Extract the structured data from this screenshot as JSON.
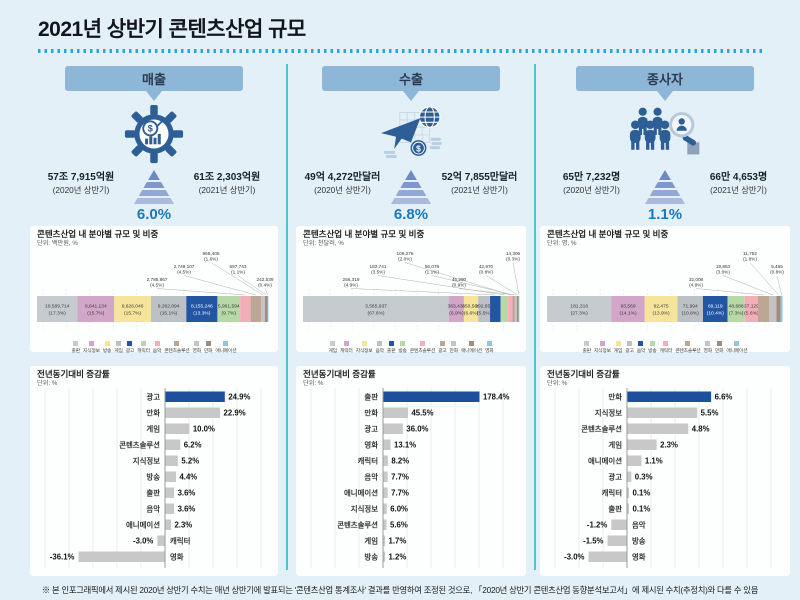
{
  "title": "2021년 상반기 콘텐츠산업 규모",
  "footnote": "※ 본 인포그래픽에서 제시된 2020년 상반기 수치는 매년 상반기에 발표되는 '콘텐츠산업 통계조사' 결과를 반영하여 조정된 것으로, 「2020년 상반기 콘텐츠산업 동향분석보고서」에 제시된 수치(추정치)와 다를 수 있음",
  "colors": {
    "background": "#e3f0f7",
    "panel": "#fdfefe",
    "header_box": "#8db6d7",
    "divider": "#58bedb",
    "dotted_line": "#27a7dd",
    "accent_blue": "#1879bd",
    "highlight_bar": "#1d4f9e",
    "bar_gray": "#c8c8c8",
    "icon_blue": "#2d5f96",
    "palette": [
      "#c6cbd0",
      "#d2a6c8",
      "#f6e49b",
      "#bcc1c6",
      "#2256a5",
      "#b8d8a8",
      "#f2afb9",
      "#bca795",
      "#c4c4c4",
      "#a18d7e",
      "#93c6de"
    ]
  },
  "columns": [
    {
      "header": "매출",
      "icon": "gear-money-icon",
      "left_value": "57조 7,915억원",
      "left_caption": "(2020년 상반기)",
      "right_value": "61조 2,303억원",
      "right_caption": "(2021년 상반기)",
      "growth": "6.0%",
      "breakdown_title": "콘텐츠산업 내 분야별 규모 및 비중",
      "breakdown_unit": "단위: 백만원, %",
      "growth_title": "전년동기대비 증감률",
      "growth_unit": "단위: %"
    },
    {
      "header": "수출",
      "icon": "airplane-globe-icon",
      "left_value": "49억 4,272만달러",
      "left_caption": "(2020년 상반기)",
      "right_value": "52억 7,855만달러",
      "right_caption": "(2021년 상반기)",
      "growth": "6.8%",
      "breakdown_title": "콘텐츠산업 내 분야별 규모 및 비중",
      "breakdown_unit": "단위: 천달러, %",
      "growth_title": "전년동기대비 증감률",
      "growth_unit": "단위: %"
    },
    {
      "header": "종사자",
      "icon": "workers-magnifier-icon",
      "left_value": "65만 7,232명",
      "left_caption": "(2020년 상반기)",
      "right_value": "66만 4,653명",
      "right_caption": "(2021년 상반기)",
      "growth": "1.1%",
      "breakdown_title": "콘텐츠산업 내 분야별 규모 및 비중",
      "breakdown_unit": "단위: 명, %",
      "growth_title": "전년동기대비 증감률",
      "growth_unit": "단위: %"
    }
  ],
  "chart_data": [
    {
      "type": "bar",
      "subtype": "stacked-horizontal",
      "title": "매출 콘텐츠산업 내 분야별 규모 및 비중",
      "unit": "백만원",
      "categories": [
        "출판",
        "지식정보",
        "방송",
        "게임",
        "광고",
        "캐릭터",
        "음악",
        "콘텐츠솔루션",
        "영화",
        "만화",
        "애니메이션"
      ],
      "values": [
        10589714,
        9641134,
        9626046,
        9262094,
        8155246,
        5961594,
        2785867,
        2749107,
        965405,
        697743,
        242539
      ],
      "pcts": [
        17.3,
        15.7,
        15.7,
        15.1,
        13.3,
        9.7,
        4.5,
        4.5,
        1.6,
        1.1,
        0.4
      ]
    },
    {
      "type": "bar",
      "subtype": "stacked-horizontal",
      "title": "수출 콘텐츠산업 내 분야별 규모 및 비중",
      "unit": "천달러",
      "categories": [
        "게임",
        "캐릭터",
        "지식정보",
        "음악",
        "출판",
        "방송",
        "콘텐츠솔루션",
        "광고",
        "만화",
        "애니메이션",
        "영화"
      ],
      "values": [
        3565937,
        363430,
        350506,
        292654,
        256319,
        182741,
        106276,
        56078,
        45290,
        42970,
        14306
      ],
      "pcts": [
        67.6,
        6.9,
        6.6,
        5.5,
        4.9,
        3.5,
        2.0,
        1.1,
        0.9,
        0.8,
        0.3
      ]
    },
    {
      "type": "bar",
      "subtype": "stacked-horizontal",
      "title": "종사자 콘텐츠산업 내 분야별 규모 및 비중",
      "unit": "명",
      "categories": [
        "출판",
        "지식정보",
        "게임",
        "광고",
        "음악",
        "방송",
        "캐릭터",
        "콘텐츠솔루션",
        "영화",
        "만화",
        "애니메이션"
      ],
      "values": [
        181316,
        93569,
        92475,
        71994,
        69119,
        48688,
        37129,
        32008,
        19863,
        11752,
        5465
      ],
      "pcts": [
        27.3,
        14.1,
        13.9,
        10.8,
        10.4,
        7.3,
        5.6,
        4.8,
        3.0,
        1.8,
        0.8
      ]
    },
    {
      "type": "bar",
      "subtype": "horizontal",
      "title": "매출 전년동기대비 증감률",
      "unit": "%",
      "categories": [
        "광고",
        "만화",
        "게임",
        "콘텐츠솔루션",
        "지식정보",
        "방송",
        "출판",
        "음악",
        "애니메이션",
        "캐릭터",
        "영화"
      ],
      "values": [
        24.9,
        22.9,
        10.0,
        6.2,
        5.2,
        4.4,
        3.6,
        3.6,
        2.3,
        -3.0,
        -36.1
      ]
    },
    {
      "type": "bar",
      "subtype": "horizontal",
      "title": "수출 전년동기대비 증감률",
      "unit": "%",
      "categories": [
        "출판",
        "만화",
        "광고",
        "영화",
        "캐릭터",
        "음악",
        "애니메이션",
        "지식정보",
        "콘텐츠솔루션",
        "게임",
        "방송"
      ],
      "values": [
        178.4,
        45.5,
        36.0,
        13.1,
        8.2,
        7.7,
        7.7,
        6.0,
        5.6,
        1.7,
        1.2
      ]
    },
    {
      "type": "bar",
      "subtype": "horizontal",
      "title": "종사자 전년동기대비 증감률",
      "unit": "%",
      "categories": [
        "만화",
        "지식정보",
        "콘텐츠솔루션",
        "게임",
        "애니메이션",
        "광고",
        "캐릭터",
        "출판",
        "음악",
        "방송",
        "영화"
      ],
      "values": [
        6.6,
        5.5,
        4.8,
        2.3,
        1.1,
        0.3,
        0.1,
        0.1,
        -1.2,
        -1.5,
        -3.0
      ]
    }
  ]
}
